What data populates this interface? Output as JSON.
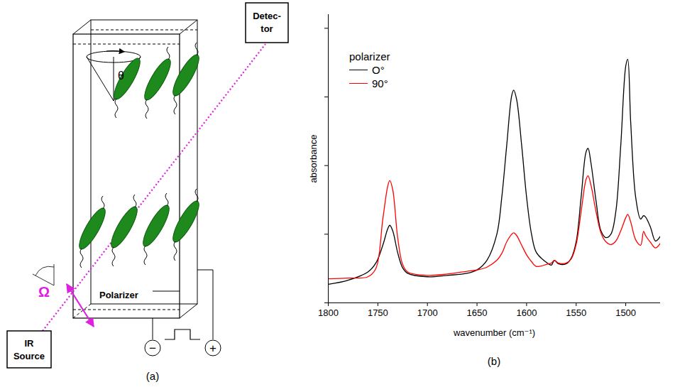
{
  "diagram": {
    "panel_label": "(a)",
    "detector": [
      "Detec-",
      "tor"
    ],
    "source": [
      "IR",
      "Source"
    ],
    "polarizer": "Polarizer",
    "polarizer_angle": "Ω",
    "tilt_angle": "θ",
    "electrodes": [
      "−",
      "+"
    ]
  },
  "chart_data": {
    "type": "line",
    "panel_label": "(b)",
    "x_label": "wavenumber (cm⁻¹)",
    "y_label": "absorbance",
    "legend_title": "polarizer",
    "legend": "top-left",
    "grid": false,
    "tick_labels": "x",
    "xlim": [
      1800,
      1465
    ],
    "xticks": [
      1800,
      1750,
      1700,
      1650,
      1600,
      1550,
      1500
    ],
    "ylim": [
      0,
      4.2
    ],
    "yticks": [
      0,
      1,
      2,
      3,
      4
    ],
    "x": [
      1800,
      1780,
      1760,
      1752,
      1745,
      1740,
      1738,
      1735,
      1730,
      1725,
      1720,
      1700,
      1680,
      1660,
      1650,
      1640,
      1630,
      1625,
      1620,
      1615,
      1613,
      1610,
      1605,
      1600,
      1595,
      1590,
      1580,
      1575,
      1572,
      1568,
      1560,
      1555,
      1550,
      1545,
      1540,
      1538,
      1535,
      1530,
      1525,
      1520,
      1515,
      1510,
      1505,
      1500,
      1498,
      1495,
      1490,
      1485,
      1482,
      1480,
      1475,
      1470,
      1465
    ],
    "series": [
      {
        "name": "O°",
        "color": "#000000",
        "values": [
          0.27,
          0.33,
          0.45,
          0.58,
          0.84,
          1.08,
          1.13,
          1.05,
          0.73,
          0.51,
          0.43,
          0.38,
          0.4,
          0.43,
          0.48,
          0.62,
          1.0,
          1.54,
          2.3,
          3.02,
          3.1,
          2.96,
          2.3,
          1.54,
          1.0,
          0.73,
          0.59,
          0.55,
          0.62,
          0.57,
          0.57,
          0.65,
          0.89,
          1.54,
          2.2,
          2.25,
          2.03,
          1.49,
          1.05,
          0.95,
          1.0,
          1.33,
          2.3,
          3.45,
          3.55,
          2.63,
          1.54,
          1.22,
          1.27,
          1.25,
          1.1,
          0.9,
          0.97
        ]
      },
      {
        "name": "90°",
        "color": "#ff0000",
        "values": [
          0.35,
          0.36,
          0.38,
          0.5,
          1.22,
          1.7,
          1.78,
          1.65,
          0.95,
          0.56,
          0.45,
          0.4,
          0.42,
          0.46,
          0.48,
          0.52,
          0.62,
          0.72,
          0.89,
          1.0,
          1.02,
          0.98,
          0.84,
          0.7,
          0.6,
          0.53,
          0.56,
          0.58,
          0.62,
          0.58,
          0.58,
          0.64,
          0.85,
          1.33,
          1.8,
          1.85,
          1.71,
          1.33,
          1.02,
          0.89,
          0.85,
          0.9,
          1.05,
          1.24,
          1.29,
          1.18,
          0.92,
          0.84,
          1.04,
          0.98,
          0.88,
          0.8,
          0.87
        ]
      }
    ]
  }
}
